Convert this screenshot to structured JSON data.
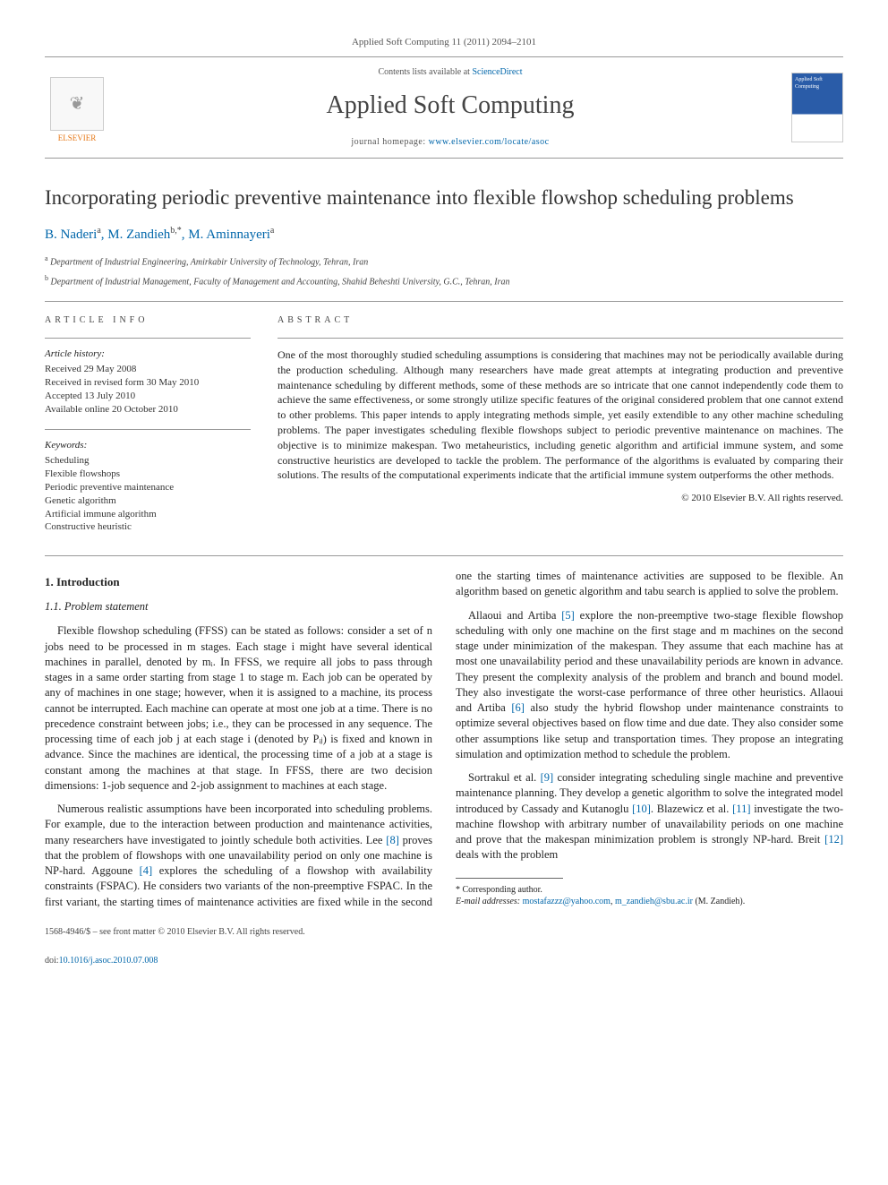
{
  "journal_ref": "Applied Soft Computing 11 (2011) 2094–2101",
  "header": {
    "contents_prefix": "Contents lists available at ",
    "contents_link": "ScienceDirect",
    "journal_title": "Applied Soft Computing",
    "homepage_prefix": "journal homepage: ",
    "homepage_url": "www.elsevier.com/locate/asoc",
    "publisher": "ELSEVIER",
    "cover_label": "Applied Soft Computing"
  },
  "paper": {
    "title": "Incorporating periodic preventive maintenance into flexible flowshop scheduling problems",
    "authors_html": "B. Naderi<span class='sup'>a</span>, M. Zandieh<span class='sup'>b,*</span>, M. Aminnayeri<span class='sup'>a</span>",
    "affiliations": [
      {
        "sup": "a",
        "text": "Department of Industrial Engineering, Amirkabir University of Technology, Tehran, Iran"
      },
      {
        "sup": "b",
        "text": "Department of Industrial Management, Faculty of Management and Accounting, Shahid Beheshti University, G.C., Tehran, Iran"
      }
    ]
  },
  "article_info": {
    "label": "ARTICLE INFO",
    "history_label": "Article history:",
    "history": [
      "Received 29 May 2008",
      "Received in revised form 30 May 2010",
      "Accepted 13 July 2010",
      "Available online 20 October 2010"
    ],
    "keywords_label": "Keywords:",
    "keywords": [
      "Scheduling",
      "Flexible flowshops",
      "Periodic preventive maintenance",
      "Genetic algorithm",
      "Artificial immune algorithm",
      "Constructive heuristic"
    ]
  },
  "abstract": {
    "label": "ABSTRACT",
    "text": "One of the most thoroughly studied scheduling assumptions is considering that machines may not be periodically available during the production scheduling. Although many researchers have made great attempts at integrating production and preventive maintenance scheduling by different methods, some of these methods are so intricate that one cannot independently code them to achieve the same effectiveness, or some strongly utilize specific features of the original considered problem that one cannot extend to other problems. This paper intends to apply integrating methods simple, yet easily extendible to any other machine scheduling problems. The paper investigates scheduling flexible flowshops subject to periodic preventive maintenance on machines. The objective is to minimize makespan. Two metaheuristics, including genetic algorithm and artificial immune system, and some constructive heuristics are developed to tackle the problem. The performance of the algorithms is evaluated by comparing their solutions. The results of the computational experiments indicate that the artificial immune system outperforms the other methods.",
    "copyright": "© 2010 Elsevier B.V. All rights reserved."
  },
  "body": {
    "sec1": "1.  Introduction",
    "sec11": "1.1.  Problem statement",
    "p1": "Flexible flowshop scheduling (FFSS) can be stated as follows: consider a set of n jobs need to be processed in m stages. Each stage i might have several identical machines in parallel, denoted by mᵢ. In FFSS, we require all jobs to pass through stages in a same order starting from stage 1 to stage m. Each job can be operated by any of machines in one stage; however, when it is assigned to a machine, its process cannot be interrupted. Each machine can operate at most one job at a time. There is no precedence constraint between jobs; i.e., they can be processed in any sequence. The processing time of each job j at each stage i (denoted by Pᵢⱼ) is fixed and known in advance. Since the machines are identical, the processing time of a job at a stage is constant among the machines at that stage. In FFSS, there are two decision dimensions: 1-job sequence and 2-job assignment to machines at each stage.",
    "p2_a": "Numerous realistic assumptions have been incorporated into scheduling problems. For example, due to the interaction between production and maintenance activities, many researchers have investigated to jointly schedule both activities. Lee ",
    "p2_ref8": "[8]",
    "p2_b": " proves that the problem of flowshops with one unavailability period on only ",
    "p3_a": "one machine is NP-hard. Aggoune ",
    "p3_ref4": "[4]",
    "p3_b": " explores the scheduling of a flowshop with availability constraints (FSPAC). He considers two variants of the non-preemptive FSPAC. In the first variant, the starting times of maintenance activities are fixed while in the second one the starting times of maintenance activities are supposed to be flexible. An algorithm based on genetic algorithm and tabu search is applied to solve the problem.",
    "p4_a": "Allaoui and Artiba ",
    "p4_ref5": "[5]",
    "p4_b": " explore the non-preemptive two-stage flexible flowshop scheduling with only one machine on the first stage and m machines on the second stage under minimization of the makespan. They assume that each machine has at most one unavailability period and these unavailability periods are known in advance. They present the complexity analysis of the problem and branch and bound model. They also investigate the worst-case performance of three other heuristics. Allaoui and Artiba ",
    "p4_ref6": "[6]",
    "p4_c": " also study the hybrid flowshop under maintenance constraints to optimize several objectives based on flow time and due date. They also consider some other assumptions like setup and transportation times. They propose an integrating simulation and optimization method to schedule the problem.",
    "p5_a": "Sortrakul et al. ",
    "p5_ref9": "[9]",
    "p5_b": " consider integrating scheduling single machine and preventive maintenance planning. They develop a genetic algorithm to solve the integrated model introduced by Cassady and Kutanoglu ",
    "p5_ref10": "[10]",
    "p5_c": ". Blazewicz et al. ",
    "p5_ref11": "[11]",
    "p5_d": " investigate the two-machine flowshop with arbitrary number of unavailability periods on one machine and prove that the makespan minimization problem is strongly NP-hard. Breit ",
    "p5_ref12": "[12]",
    "p5_e": " deals with the problem"
  },
  "footnote": {
    "corr": "* Corresponding author.",
    "email_label": "E-mail addresses: ",
    "email1": "mostafazzz@yahoo.com",
    "email2": "m_zandieh@sbu.ac.ir",
    "email_tail": " (M. Zandieh)."
  },
  "footer": {
    "issn": "1568-4946/$ – see front matter © 2010 Elsevier B.V. All rights reserved.",
    "doi_label": "doi:",
    "doi": "10.1016/j.asoc.2010.07.008"
  },
  "colors": {
    "link": "#0066aa",
    "rule": "#999999",
    "accent": "#e67817"
  }
}
